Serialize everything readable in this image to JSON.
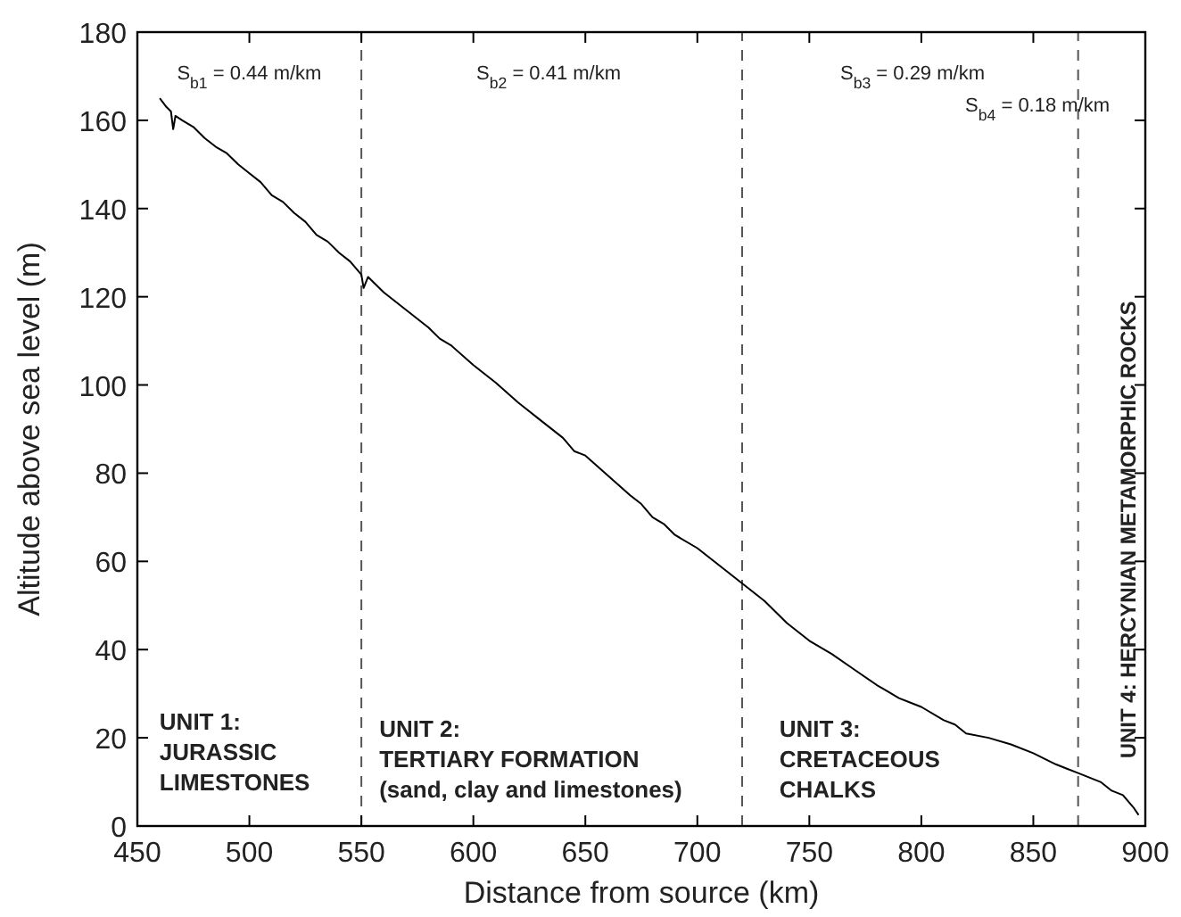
{
  "chart_data": {
    "type": "line",
    "xlabel": "Distance from source (km)",
    "ylabel": "Altitude above sea level (m)",
    "xlim": [
      450,
      900
    ],
    "xticks": [
      450,
      500,
      550,
      600,
      650,
      700,
      750,
      800,
      850,
      900
    ],
    "ylim": [
      0,
      180
    ],
    "yticks": [
      0,
      20,
      40,
      60,
      80,
      100,
      120,
      140,
      160,
      180
    ],
    "grid": false,
    "marker": "none",
    "line_style": "solid",
    "series": [
      {
        "color": "#000000",
        "x": [
          460,
          463,
          465,
          466,
          467,
          470,
          475,
          480,
          485,
          490,
          495,
          500,
          505,
          510,
          515,
          520,
          525,
          530,
          535,
          540,
          545,
          550,
          551,
          553,
          560,
          570,
          580,
          585,
          590,
          600,
          610,
          620,
          630,
          640,
          645,
          650,
          660,
          670,
          675,
          680,
          685,
          690,
          700,
          710,
          720,
          730,
          740,
          750,
          760,
          770,
          780,
          785,
          790,
          800,
          810,
          815,
          820,
          830,
          840,
          850,
          860,
          865,
          870,
          875,
          880,
          885,
          890,
          895,
          897
        ],
        "values": [
          165,
          163,
          162,
          158,
          161,
          160,
          158.5,
          156,
          154,
          152.5,
          150,
          148,
          146,
          143,
          141.5,
          139,
          137,
          134,
          132.5,
          130,
          128,
          125,
          122,
          124.5,
          121,
          117,
          113,
          110.5,
          109,
          104.5,
          100.5,
          96,
          92,
          88,
          85,
          84,
          79.5,
          75,
          73,
          70,
          68.5,
          66,
          63,
          59,
          55,
          51,
          46,
          42,
          39,
          35.5,
          32,
          30.5,
          29,
          27,
          24,
          23,
          21,
          20,
          18.5,
          16.5,
          14,
          13,
          12,
          11,
          10,
          8,
          7,
          4,
          2.5
        ]
      }
    ],
    "ref_lines": [
      {
        "axis": "x",
        "value": 550,
        "color": "#555555",
        "line_style": "dashed"
      },
      {
        "axis": "x",
        "value": 720,
        "color": "#555555",
        "line_style": "dashed"
      },
      {
        "axis": "x",
        "value": 870,
        "color": "#555555",
        "line_style": "dashed"
      }
    ],
    "annotations": [
      "S$_{b1}$ = 0.44 m/km",
      "S$_{b2}$ = 0.41 m/km",
      "S$_{b3}$ = 0.29 m/km",
      "S$_{b4}$ = 0.18 m/km",
      "UNIT 1:\nJURASSIC\nLIMESTONES",
      "UNIT 2:\nTERTIARY FORMATION\n(sand, clay and limestones)",
      "UNIT 3:\nCRETACEOUS\nCHALKS",
      "UNIT 4: HERCYNIAN METAMORPHIC ROCKS"
    ]
  }
}
